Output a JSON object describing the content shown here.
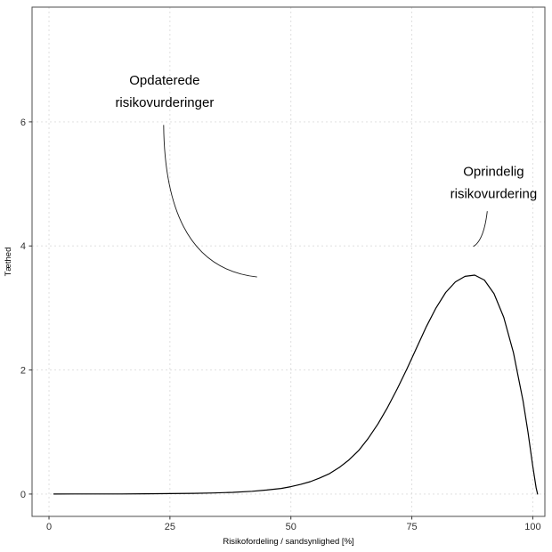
{
  "chart_data": {
    "type": "line",
    "title": "",
    "xlabel": "Risikofordeling / sandsynlighed [%]",
    "ylabel": "Tæthed",
    "x_ticks": [
      0,
      25,
      50,
      75,
      100
    ],
    "y_ticks": [
      0,
      2,
      4,
      6
    ],
    "x_domain": [
      -3.5,
      102.5
    ],
    "y_domain": [
      -0.36,
      7.85
    ],
    "grid": "dashed",
    "legend": "none",
    "series": [
      {
        "name": "risk-density-curve",
        "color": "#000000",
        "x": [
          1,
          5,
          10,
          15,
          20,
          25,
          30,
          34,
          38,
          42,
          45,
          48,
          50,
          52,
          54,
          56,
          58,
          60,
          62,
          64,
          66,
          68,
          70,
          72,
          74,
          76,
          78,
          80,
          82,
          84,
          86,
          88,
          90,
          92,
          94,
          96,
          98,
          99,
          100,
          100.7,
          101
        ],
        "y": [
          0,
          0.001,
          0.001,
          0.002,
          0.004,
          0.007,
          0.012,
          0.018,
          0.028,
          0.045,
          0.065,
          0.09,
          0.12,
          0.155,
          0.2,
          0.26,
          0.33,
          0.43,
          0.55,
          0.7,
          0.9,
          1.13,
          1.4,
          1.7,
          2.02,
          2.36,
          2.7,
          3.0,
          3.25,
          3.42,
          3.51,
          3.53,
          3.45,
          3.23,
          2.85,
          2.28,
          1.5,
          1.0,
          0.45,
          0.1,
          0
        ]
      }
    ],
    "annotations": [
      {
        "name": "updated-risk-annotation",
        "lines": [
          "Opdaterede",
          "risikovurderinger"
        ],
        "x": 23.9,
        "y": 6.6,
        "line_step": 0.36,
        "curve": {
          "x1": 23.7,
          "y1": 5.95,
          "cx": 24.0,
          "cy": 3.66,
          "x2": 43.0,
          "y2": 3.5
        }
      },
      {
        "name": "original-risk-annotation",
        "lines": [
          "Oprindelig",
          "risikovurdering"
        ],
        "x": 91.9,
        "y": 5.13,
        "line_step": 0.36,
        "curve": {
          "x1": 90.6,
          "y1": 4.56,
          "cx": 89.9,
          "cy": 4.09,
          "x2": 87.7,
          "y2": 3.99
        }
      }
    ],
    "colors": {
      "background": "#ffffff",
      "panel_background": "#ffffff",
      "grid": "#dcdcdc",
      "panel_border": "#4d4d4d",
      "tick_mark": "#333333",
      "tick_label": "#323232",
      "axis_title": "#000000",
      "curve": "#000000",
      "annotation_text": "#000000",
      "annotation_line": "#1a1a1a"
    }
  }
}
